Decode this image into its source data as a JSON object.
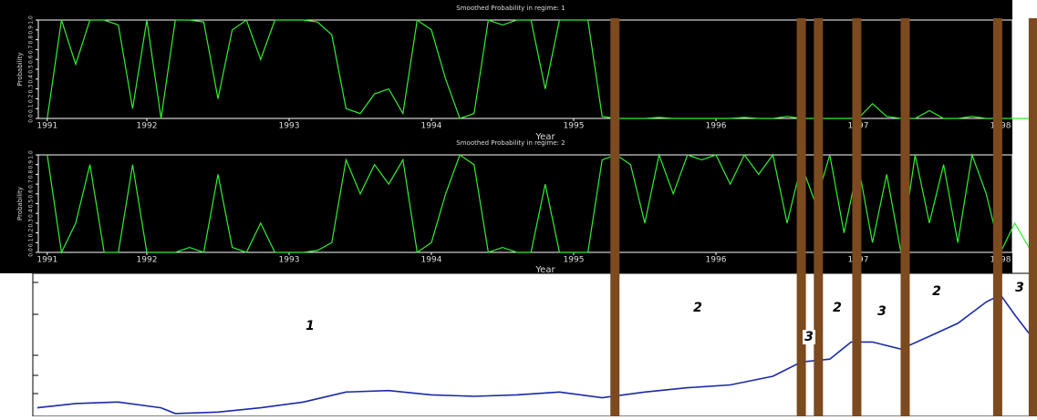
{
  "chart_data": [
    {
      "type": "line",
      "title": "Smoothed Probability in regime: 1",
      "xlabel": "Year",
      "ylabel": "Probability",
      "color": "#33ee33",
      "xlim": [
        1991.3,
        1998.35
      ],
      "ylim": [
        0,
        1
      ],
      "xticks": [
        {
          "value": 1991.3,
          "label": "1991"
        },
        1992,
        1993,
        1994,
        1995,
        1996,
        1997,
        1998
      ],
      "yticks": [
        {
          "value": 0,
          "label": "0.0"
        },
        0.1,
        0.2,
        0.3,
        0.4,
        0.5,
        0.6,
        0.7,
        0.8,
        0.9,
        {
          "value": 1,
          "label": "1.0"
        }
      ],
      "x": [
        1991.3,
        1991.4,
        1991.5,
        1991.6,
        1991.7,
        1991.8,
        1991.9,
        1992.0,
        1992.1,
        1992.2,
        1992.3,
        1992.4,
        1992.5,
        1992.6,
        1992.7,
        1992.8,
        1992.9,
        1993.0,
        1993.1,
        1993.2,
        1993.3,
        1993.4,
        1993.5,
        1993.6,
        1993.7,
        1993.8,
        1993.9,
        1994.0,
        1994.1,
        1994.2,
        1994.3,
        1994.4,
        1994.5,
        1994.6,
        1994.7,
        1994.8,
        1994.9,
        1995.0,
        1995.1,
        1995.2,
        1995.3,
        1995.4,
        1995.5,
        1995.6,
        1995.7,
        1995.8,
        1995.9,
        1996.0,
        1996.1,
        1996.2,
        1996.3,
        1996.4,
        1996.5,
        1996.6,
        1996.7,
        1996.8,
        1996.9,
        1997.0,
        1997.1,
        1997.2,
        1997.3,
        1997.4,
        1997.5,
        1997.6,
        1997.7,
        1997.8,
        1997.9,
        1998.0,
        1998.1,
        1998.2,
        1998.3
      ],
      "values": [
        0,
        1,
        0.55,
        1,
        1,
        0.95,
        0.1,
        1,
        0,
        1,
        1,
        0.98,
        0.2,
        0.9,
        1,
        0.6,
        1,
        1,
        1,
        0.98,
        0.85,
        0.1,
        0.05,
        0.25,
        0.3,
        0.05,
        1,
        0.9,
        0.4,
        0,
        0.05,
        1,
        0.95,
        1,
        1,
        0.3,
        1,
        1,
        1,
        0.02,
        0,
        0,
        0,
        0.01,
        0,
        0,
        0,
        0,
        0,
        0.01,
        0,
        0,
        0.02,
        0,
        0,
        0,
        0,
        0,
        0.15,
        0.02,
        0,
        0,
        0.08,
        0,
        0,
        0.02,
        0,
        0,
        0,
        0,
        0
      ]
    },
    {
      "type": "line",
      "title": "Smoothed Probability in regime: 2",
      "xlabel": "Year",
      "ylabel": "Probability",
      "color": "#33ee33",
      "xlim": [
        1991.3,
        1998.35
      ],
      "ylim": [
        0,
        1
      ],
      "xticks": [
        {
          "value": 1991.3,
          "label": "1991"
        },
        1992,
        1993,
        1994,
        1995,
        1996,
        1997,
        1998
      ],
      "yticks": [
        {
          "value": 0,
          "label": "0.0"
        },
        0.1,
        0.2,
        0.3,
        0.4,
        0.5,
        0.6,
        0.7,
        0.8,
        0.9,
        {
          "value": 1,
          "label": "1.0"
        }
      ],
      "x": [
        1991.3,
        1991.4,
        1991.5,
        1991.6,
        1991.7,
        1991.8,
        1991.9,
        1992.0,
        1992.1,
        1992.2,
        1992.3,
        1992.4,
        1992.5,
        1992.6,
        1992.7,
        1992.8,
        1992.9,
        1993.0,
        1993.1,
        1993.2,
        1993.3,
        1993.4,
        1993.5,
        1993.6,
        1993.7,
        1993.8,
        1993.9,
        1994.0,
        1994.1,
        1994.2,
        1994.3,
        1994.4,
        1994.5,
        1994.6,
        1994.7,
        1994.8,
        1994.9,
        1995.0,
        1995.1,
        1995.2,
        1995.3,
        1995.4,
        1995.5,
        1995.6,
        1995.7,
        1995.8,
        1995.9,
        1996.0,
        1996.1,
        1996.2,
        1996.3,
        1996.4,
        1996.5,
        1996.6,
        1996.7,
        1996.8,
        1996.9,
        1997.0,
        1997.1,
        1997.2,
        1997.3,
        1997.4,
        1997.5,
        1997.6,
        1997.7,
        1997.8,
        1997.9,
        1998.0,
        1998.1,
        1998.2,
        1998.3
      ],
      "values": [
        1,
        0,
        0.3,
        0.9,
        0,
        0,
        0.9,
        0,
        0,
        0,
        0.05,
        0,
        0.8,
        0.05,
        0,
        0.3,
        0,
        0,
        0,
        0.02,
        0.1,
        0.95,
        0.6,
        0.9,
        0.7,
        0.95,
        0,
        0.1,
        0.6,
        1,
        0.9,
        0,
        0.05,
        0,
        0,
        0.7,
        0,
        0,
        0,
        0.95,
        1,
        0.9,
        0.3,
        1,
        0.6,
        1,
        0.95,
        1,
        0.7,
        1,
        0.8,
        1,
        0.3,
        0.9,
        0.5,
        1,
        0.2,
        0.9,
        0.1,
        0.8,
        0,
        1,
        0.3,
        0.9,
        0.1,
        1,
        0.6,
        0,
        0.3,
        0.05,
        0.4
      ]
    },
    {
      "type": "line",
      "color": "#1a2aa8",
      "xlim": [
        1991.3,
        1998.35
      ],
      "ylim": [
        0,
        100
      ],
      "x": [
        1991.23,
        1991.5,
        1991.8,
        1992.1,
        1992.2,
        1992.5,
        1992.8,
        1993.1,
        1993.4,
        1993.7,
        1994.0,
        1994.3,
        1994.6,
        1994.9,
        1995.2,
        1995.5,
        1995.8,
        1996.1,
        1996.4,
        1996.6,
        1996.8,
        1996.95,
        1997.1,
        1997.3,
        1997.5,
        1997.7,
        1997.9,
        1998.0,
        1998.1,
        1998.2
      ],
      "values": [
        6,
        9,
        10,
        6,
        2,
        3,
        6,
        10,
        17,
        18,
        15,
        14,
        15,
        17,
        13,
        17,
        20,
        22,
        28,
        38,
        40,
        52,
        52,
        47,
        56,
        65,
        80,
        85,
        71,
        58
      ],
      "regime_breaks": [
        1995.29,
        1996.6,
        1996.72,
        1996.99,
        1997.33,
        1997.98,
        1998.23
      ],
      "break_color": "#7b4a1e",
      "annotations": [
        "1",
        "2",
        "3",
        "2",
        "3",
        "2",
        "3"
      ]
    }
  ]
}
